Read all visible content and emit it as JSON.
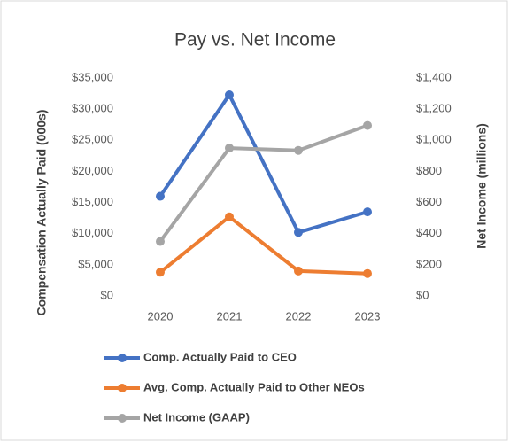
{
  "chart_data": {
    "type": "line",
    "title": "Pay vs. Net Income",
    "y_label": "Compensation Actually Paid (000s)",
    "y2_label": "Net Income (millions)",
    "categories": [
      "2020",
      "2021",
      "2022",
      "2023"
    ],
    "series": [
      {
        "name": "Comp. Actually Paid to CEO",
        "color": "#4472c4",
        "values": [
          16000,
          32300,
          10200,
          13500
        ]
      },
      {
        "name": "Avg. Comp. Actually Paid to Other NEOs",
        "color": "#ed7d31",
        "values": [
          3800,
          12700,
          4000,
          3600
        ]
      },
      {
        "name": "Net Income (GAAP)",
        "color": "#a5a5a5",
        "axis": "y2",
        "values": [
          350,
          950,
          935,
          1095
        ]
      }
    ],
    "ylim": [
      0,
      35000
    ],
    "yticks": [
      {
        "value": 0,
        "label": "$0"
      },
      {
        "value": 5000,
        "label": "$5,000"
      },
      {
        "value": 10000,
        "label": "$10,000"
      },
      {
        "value": 15000,
        "label": "$15,000"
      },
      {
        "value": 20000,
        "label": "$20,000"
      },
      {
        "value": 25000,
        "label": "$25,000"
      },
      {
        "value": 30000,
        "label": "$30,000"
      },
      {
        "value": 35000,
        "label": "$35,000"
      }
    ],
    "y2lim": [
      0,
      1400
    ],
    "y2ticks": [
      {
        "value": 0,
        "label": "$0"
      },
      {
        "value": 200,
        "label": "$200"
      },
      {
        "value": 400,
        "label": "$400"
      },
      {
        "value": 600,
        "label": "$600"
      },
      {
        "value": 800,
        "label": "$800"
      },
      {
        "value": 1000,
        "label": "$1,000"
      },
      {
        "value": 1200,
        "label": "$1,200"
      },
      {
        "value": 1400,
        "label": "$1,400"
      }
    ],
    "grid": false
  }
}
